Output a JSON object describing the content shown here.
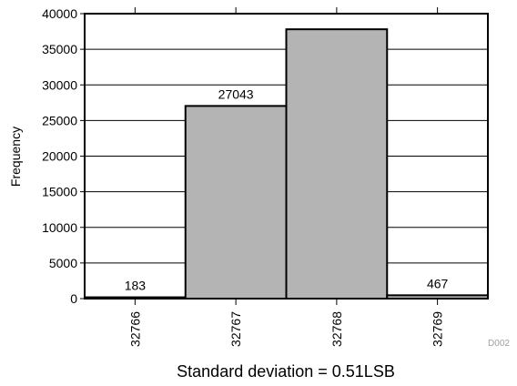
{
  "chart_data": {
    "type": "bar",
    "categories": [
      "32766",
      "32767",
      "32768",
      "32769"
    ],
    "values": [
      183,
      27043,
      37807,
      467
    ],
    "data_labels": [
      "183",
      "27043",
      "",
      "467"
    ],
    "title": "",
    "xlabel": "Standard deviation = 0.51LSB",
    "ylabel": "Frequency",
    "ylim": [
      0,
      40000
    ],
    "yticks": [
      0,
      5000,
      10000,
      15000,
      20000,
      25000,
      30000,
      35000,
      40000
    ],
    "grid": "horizontal",
    "legend": "none",
    "bar_color": "#b4b4b4",
    "edge_color": "#000000",
    "figure_code": "D002"
  }
}
